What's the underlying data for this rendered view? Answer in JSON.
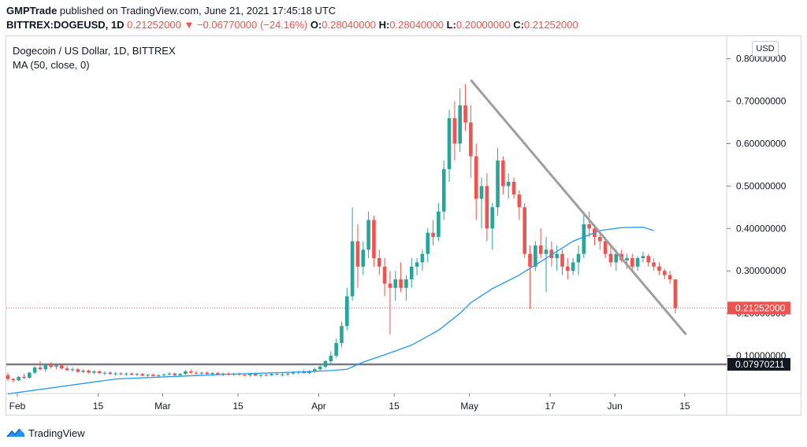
{
  "header": {
    "publisher": "GMPTrade",
    "published_text": "published on TradingView.com, June 21, 2021 17:45:18 UTC",
    "symbol": "BITTREX:DOGEUSD, 1D",
    "last": "0.21252000",
    "change_arrow": "▼",
    "change": "−0.06770000 (−24.16%)",
    "o_label": "O:",
    "o_value": "0.28040000",
    "h_label": "H:",
    "h_value": "0.28040000",
    "l_label": "L:",
    "l_value": "0.20000000",
    "c_label": "C:",
    "c_value": "0.21252000"
  },
  "legend": {
    "title": "Dogecoin / US Dollar, 1D, BITTREX",
    "ma": "MA (50, close, 0)"
  },
  "currency_button": "USD",
  "footer": {
    "brand": "TradingView"
  },
  "colors": {
    "up": "#26a69a",
    "down": "#ef5350",
    "ma": "#2196f3",
    "trendline": "#9e9e9e",
    "support": "#787b86"
  },
  "chart_data": {
    "type": "candlestick",
    "y_axis": {
      "min": 0.0,
      "max": 0.85,
      "ticks": [
        "0.80000000",
        "0.70000000",
        "0.60000000",
        "0.50000000",
        "0.40000000",
        "0.30000000",
        "0.20000000",
        "0.10000000"
      ]
    },
    "x_axis": {
      "labels": [
        "Feb",
        "15",
        "Mar",
        "15",
        "Apr",
        "15",
        "May",
        "17",
        "Jun",
        "15"
      ]
    },
    "price_labels": [
      {
        "value": "0.21252000",
        "price": 0.21252,
        "color": "#ef5350"
      },
      {
        "value": "0.07970211",
        "price": 0.0797,
        "color": "#131722"
      }
    ],
    "candles": [
      [
        0.054,
        0.06,
        0.04,
        0.045
      ],
      [
        0.045,
        0.048,
        0.037,
        0.042
      ],
      [
        0.042,
        0.052,
        0.04,
        0.05
      ],
      [
        0.05,
        0.057,
        0.045,
        0.048
      ],
      [
        0.048,
        0.062,
        0.046,
        0.06
      ],
      [
        0.06,
        0.075,
        0.057,
        0.072
      ],
      [
        0.072,
        0.088,
        0.065,
        0.068
      ],
      [
        0.068,
        0.082,
        0.062,
        0.078
      ],
      [
        0.078,
        0.085,
        0.07,
        0.074
      ],
      [
        0.074,
        0.082,
        0.068,
        0.077
      ],
      [
        0.077,
        0.08,
        0.068,
        0.07
      ],
      [
        0.07,
        0.076,
        0.064,
        0.066
      ],
      [
        0.066,
        0.072,
        0.062,
        0.068
      ],
      [
        0.068,
        0.071,
        0.06,
        0.062
      ],
      [
        0.062,
        0.068,
        0.059,
        0.065
      ],
      [
        0.065,
        0.067,
        0.058,
        0.06
      ],
      [
        0.06,
        0.066,
        0.056,
        0.063
      ],
      [
        0.063,
        0.066,
        0.057,
        0.059
      ],
      [
        0.059,
        0.063,
        0.054,
        0.06
      ],
      [
        0.06,
        0.064,
        0.055,
        0.057
      ],
      [
        0.057,
        0.062,
        0.053,
        0.058
      ],
      [
        0.058,
        0.061,
        0.054,
        0.056
      ],
      [
        0.056,
        0.06,
        0.052,
        0.058
      ],
      [
        0.058,
        0.06,
        0.053,
        0.055
      ],
      [
        0.055,
        0.059,
        0.052,
        0.057
      ],
      [
        0.057,
        0.059,
        0.052,
        0.053
      ],
      [
        0.053,
        0.057,
        0.05,
        0.055
      ],
      [
        0.055,
        0.058,
        0.051,
        0.052
      ],
      [
        0.052,
        0.056,
        0.049,
        0.054
      ],
      [
        0.054,
        0.058,
        0.05,
        0.056
      ],
      [
        0.056,
        0.061,
        0.053,
        0.058
      ],
      [
        0.058,
        0.06,
        0.052,
        0.054
      ],
      [
        0.054,
        0.059,
        0.051,
        0.057
      ],
      [
        0.057,
        0.066,
        0.055,
        0.063
      ],
      [
        0.063,
        0.068,
        0.057,
        0.06
      ],
      [
        0.06,
        0.064,
        0.055,
        0.058
      ],
      [
        0.058,
        0.062,
        0.054,
        0.06
      ],
      [
        0.06,
        0.063,
        0.055,
        0.057
      ],
      [
        0.057,
        0.061,
        0.053,
        0.059
      ],
      [
        0.059,
        0.062,
        0.054,
        0.056
      ],
      [
        0.056,
        0.06,
        0.052,
        0.058
      ],
      [
        0.058,
        0.061,
        0.053,
        0.055
      ],
      [
        0.055,
        0.06,
        0.052,
        0.057
      ],
      [
        0.057,
        0.06,
        0.053,
        0.055
      ],
      [
        0.055,
        0.058,
        0.051,
        0.054
      ],
      [
        0.054,
        0.059,
        0.05,
        0.057
      ],
      [
        0.057,
        0.06,
        0.052,
        0.053
      ],
      [
        0.053,
        0.056,
        0.049,
        0.055
      ],
      [
        0.055,
        0.058,
        0.051,
        0.054
      ],
      [
        0.054,
        0.06,
        0.052,
        0.057
      ],
      [
        0.057,
        0.061,
        0.054,
        0.055
      ],
      [
        0.055,
        0.059,
        0.051,
        0.056
      ],
      [
        0.056,
        0.06,
        0.052,
        0.058
      ],
      [
        0.058,
        0.064,
        0.055,
        0.06
      ],
      [
        0.06,
        0.065,
        0.056,
        0.062
      ],
      [
        0.062,
        0.068,
        0.058,
        0.059
      ],
      [
        0.059,
        0.066,
        0.057,
        0.064
      ],
      [
        0.064,
        0.072,
        0.06,
        0.068
      ],
      [
        0.068,
        0.078,
        0.064,
        0.074
      ],
      [
        0.074,
        0.09,
        0.07,
        0.087
      ],
      [
        0.087,
        0.11,
        0.08,
        0.1
      ],
      [
        0.1,
        0.14,
        0.095,
        0.13
      ],
      [
        0.13,
        0.18,
        0.12,
        0.17
      ],
      [
        0.17,
        0.26,
        0.16,
        0.24
      ],
      [
        0.24,
        0.45,
        0.23,
        0.37
      ],
      [
        0.37,
        0.41,
        0.26,
        0.31
      ],
      [
        0.31,
        0.37,
        0.29,
        0.35
      ],
      [
        0.35,
        0.44,
        0.33,
        0.42
      ],
      [
        0.42,
        0.43,
        0.31,
        0.33
      ],
      [
        0.33,
        0.35,
        0.29,
        0.31
      ],
      [
        0.31,
        0.33,
        0.24,
        0.27
      ],
      [
        0.27,
        0.3,
        0.15,
        0.26
      ],
      [
        0.26,
        0.3,
        0.23,
        0.28
      ],
      [
        0.28,
        0.32,
        0.25,
        0.26
      ],
      [
        0.26,
        0.29,
        0.23,
        0.28
      ],
      [
        0.28,
        0.33,
        0.26,
        0.31
      ],
      [
        0.31,
        0.33,
        0.29,
        0.32
      ],
      [
        0.32,
        0.35,
        0.3,
        0.34
      ],
      [
        0.34,
        0.4,
        0.32,
        0.39
      ],
      [
        0.39,
        0.42,
        0.36,
        0.38
      ],
      [
        0.38,
        0.46,
        0.37,
        0.44
      ],
      [
        0.44,
        0.56,
        0.42,
        0.54
      ],
      [
        0.54,
        0.68,
        0.51,
        0.66
      ],
      [
        0.66,
        0.7,
        0.56,
        0.6
      ],
      [
        0.6,
        0.73,
        0.58,
        0.69
      ],
      [
        0.69,
        0.74,
        0.63,
        0.65
      ],
      [
        0.65,
        0.69,
        0.52,
        0.57
      ],
      [
        0.57,
        0.6,
        0.42,
        0.47
      ],
      [
        0.47,
        0.52,
        0.4,
        0.5
      ],
      [
        0.5,
        0.53,
        0.37,
        0.4
      ],
      [
        0.4,
        0.46,
        0.35,
        0.45
      ],
      [
        0.45,
        0.59,
        0.43,
        0.56
      ],
      [
        0.56,
        0.57,
        0.48,
        0.5
      ],
      [
        0.5,
        0.53,
        0.47,
        0.51
      ],
      [
        0.51,
        0.52,
        0.47,
        0.48
      ],
      [
        0.48,
        0.49,
        0.42,
        0.45
      ],
      [
        0.45,
        0.46,
        0.33,
        0.34
      ],
      [
        0.34,
        0.36,
        0.21,
        0.31
      ],
      [
        0.31,
        0.37,
        0.3,
        0.36
      ],
      [
        0.36,
        0.4,
        0.33,
        0.34
      ],
      [
        0.34,
        0.38,
        0.25,
        0.35
      ],
      [
        0.35,
        0.37,
        0.31,
        0.33
      ],
      [
        0.33,
        0.36,
        0.3,
        0.34
      ],
      [
        0.34,
        0.35,
        0.29,
        0.31
      ],
      [
        0.31,
        0.33,
        0.28,
        0.3
      ],
      [
        0.3,
        0.33,
        0.29,
        0.32
      ],
      [
        0.32,
        0.36,
        0.29,
        0.34
      ],
      [
        0.34,
        0.44,
        0.33,
        0.41
      ],
      [
        0.41,
        0.44,
        0.38,
        0.4
      ],
      [
        0.4,
        0.41,
        0.36,
        0.38
      ],
      [
        0.38,
        0.39,
        0.35,
        0.37
      ],
      [
        0.37,
        0.38,
        0.33,
        0.34
      ],
      [
        0.34,
        0.36,
        0.31,
        0.32
      ],
      [
        0.32,
        0.35,
        0.3,
        0.34
      ],
      [
        0.34,
        0.35,
        0.32,
        0.325
      ],
      [
        0.325,
        0.34,
        0.305,
        0.33
      ],
      [
        0.33,
        0.34,
        0.3,
        0.31
      ],
      [
        0.31,
        0.335,
        0.3,
        0.33
      ],
      [
        0.33,
        0.345,
        0.32,
        0.335
      ],
      [
        0.335,
        0.34,
        0.31,
        0.32
      ],
      [
        0.32,
        0.33,
        0.3,
        0.31
      ],
      [
        0.31,
        0.32,
        0.29,
        0.3
      ],
      [
        0.3,
        0.305,
        0.28,
        0.29
      ],
      [
        0.29,
        0.3,
        0.27,
        0.28
      ],
      [
        0.28,
        0.28,
        0.2,
        0.21252
      ]
    ],
    "ma": [
      [
        0,
        0.01
      ],
      [
        20,
        0.045
      ],
      [
        40,
        0.056
      ],
      [
        55,
        0.062
      ],
      [
        60,
        0.065
      ],
      [
        63,
        0.068
      ],
      [
        66,
        0.085
      ],
      [
        70,
        0.102
      ],
      [
        75,
        0.125
      ],
      [
        80,
        0.16
      ],
      [
        84,
        0.2
      ],
      [
        86,
        0.225
      ],
      [
        90,
        0.258
      ],
      [
        95,
        0.29
      ],
      [
        100,
        0.33
      ],
      [
        105,
        0.37
      ],
      [
        110,
        0.395
      ],
      [
        114,
        0.402
      ],
      [
        118,
        0.403
      ],
      [
        120,
        0.395
      ]
    ],
    "trendline": {
      "start": [
        86,
        0.75
      ],
      "end": [
        126,
        0.15
      ]
    },
    "support_line": 0.0797
  }
}
